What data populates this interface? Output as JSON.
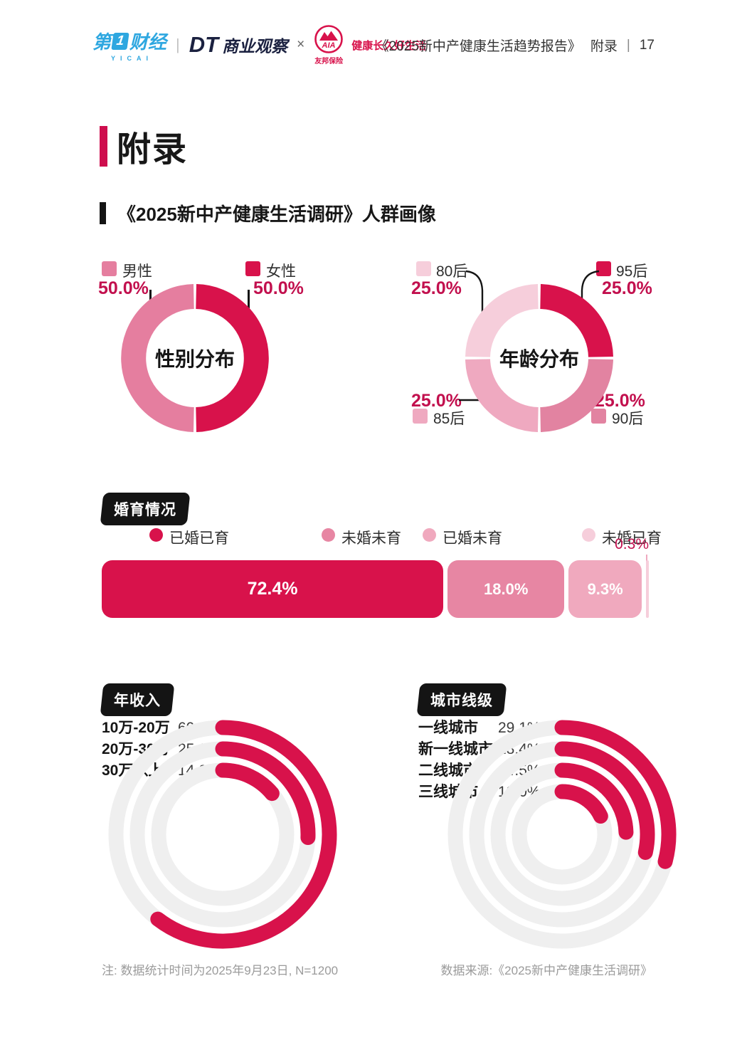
{
  "header": {
    "logo_yicai": {
      "char1": "第",
      "num": "1",
      "rest": "财经",
      "sub": "YICAI"
    },
    "logo_divider": "|",
    "logo_dt": {
      "prefix": "DT",
      "rest": "商业观察"
    },
    "logo_x": "×",
    "logo_aia": {
      "name": "AIA",
      "company": "友邦保险",
      "slogan": "健康长久好生活"
    },
    "report_title": "《2025新中产健康生活趋势报告》",
    "section": "附录",
    "divider": "|",
    "page_number": "17"
  },
  "main_title": "附录",
  "section_title": "《2025新中产健康生活调研》人群画像",
  "colors": {
    "crimson": "#D8124B",
    "crimson_text": "#C2104E",
    "pink": "#E283A1",
    "light_pink": "#EFA9C0",
    "pale_pink": "#F6CEDB",
    "track_gray": "#EFEFEF",
    "yicai_blue": "#2EA7E0",
    "dt_navy": "#1B2140",
    "ink": "#151515",
    "footer_gray": "#9B9B9B"
  },
  "chart_data": [
    {
      "type": "donut",
      "title": "性别分布",
      "slices": [
        {
          "label": "男性",
          "value": 50.0,
          "value_display": "50.0%",
          "color": "#E57E9F"
        },
        {
          "label": "女性",
          "value": 50.0,
          "value_display": "50.0%",
          "color": "#D8124B"
        }
      ]
    },
    {
      "type": "donut",
      "title": "年龄分布",
      "slices": [
        {
          "label": "95后",
          "value": 25.0,
          "value_display": "25.0%",
          "color": "#D8124B"
        },
        {
          "label": "90后",
          "value": 25.0,
          "value_display": "25.0%",
          "color": "#E283A1"
        },
        {
          "label": "85后",
          "value": 25.0,
          "value_display": "25.0%",
          "color": "#EFA9C0"
        },
        {
          "label": "80后",
          "value": 25.0,
          "value_display": "25.0%",
          "color": "#F6CEDB"
        }
      ]
    },
    {
      "type": "stacked_bar",
      "title": "婚育情况",
      "segments": [
        {
          "label": "已婚已育",
          "value": 72.4,
          "value_display": "72.4%",
          "color": "#D8124B"
        },
        {
          "label": "未婚未育",
          "value": 18.0,
          "value_display": "18.0%",
          "color": "#E786A3"
        },
        {
          "label": "已婚未育",
          "value": 9.3,
          "value_display": "9.3%",
          "color": "#F0A9BE"
        },
        {
          "label": "未婚已育",
          "value": 0.3,
          "value_display": "0.3%",
          "color": "#F6CEDB"
        }
      ]
    },
    {
      "type": "radial_bar",
      "title": "年收入",
      "max": 100,
      "bar_color": "#D8124B",
      "track_color": "#EFEFEF",
      "rings": [
        {
          "label": "10万-20万",
          "value": 60.4,
          "value_display": "60.4%"
        },
        {
          "label": "20万-30万",
          "value": 25.6,
          "value_display": "25.6%"
        },
        {
          "label": "30万以上",
          "value": 14.0,
          "value_display": "14.0%"
        }
      ]
    },
    {
      "type": "radial_bar",
      "title": "城市线级",
      "max": 100,
      "bar_color": "#D8124B",
      "track_color": "#EFEFEF",
      "rings": [
        {
          "label": "一线城市",
          "value": 29.1,
          "value_display": "29.1%"
        },
        {
          "label": "新一线城市",
          "value": 28.4,
          "value_display": "28.4%"
        },
        {
          "label": "二线城市",
          "value": 24.5,
          "value_display": "24.5%"
        },
        {
          "label": "三线城市",
          "value": 18.0,
          "value_display": "18.0%"
        }
      ]
    }
  ],
  "footer": {
    "note": "注: 数据统计时间为2025年9月23日, N=1200",
    "source": "数据来源:《2025新中产健康生活调研》"
  }
}
